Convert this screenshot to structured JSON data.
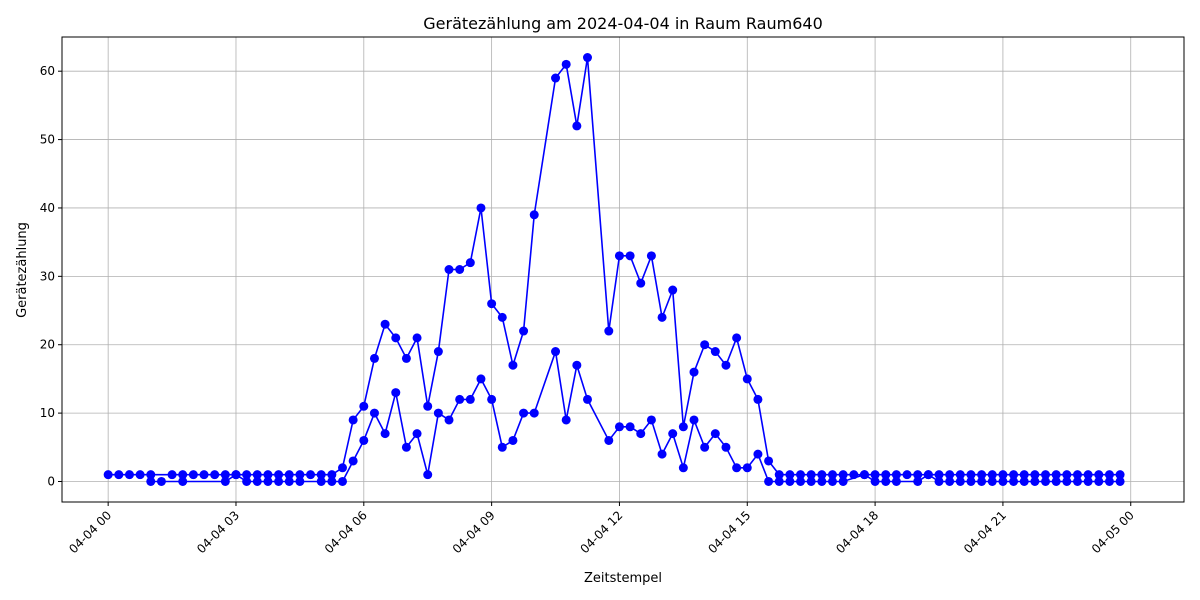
{
  "chart_data": {
    "type": "line",
    "title": "Gerätezählung am 2024-04-04 in Raum Raum640",
    "xlabel": "Zeitstempel",
    "ylabel": "Gerätezählung",
    "x_axis_type": "datetime",
    "xlim": [
      "2024-04-03 22:55",
      "2024-04-05 01:15"
    ],
    "ylim": [
      -3,
      65
    ],
    "x_ticks": [
      "2024-04-04 00:00",
      "2024-04-04 03:00",
      "2024-04-04 06:00",
      "2024-04-04 09:00",
      "2024-04-04 12:00",
      "2024-04-04 15:00",
      "2024-04-04 18:00",
      "2024-04-04 21:00",
      "2024-04-05 00:00"
    ],
    "x_tick_labels": [
      "04-04 00",
      "04-04 03",
      "04-04 06",
      "04-04 09",
      "04-04 12",
      "04-04 15",
      "04-04 18",
      "04-04 21",
      "04-05 00"
    ],
    "y_ticks": [
      0,
      10,
      20,
      30,
      40,
      50,
      60
    ],
    "y_tick_labels": [
      "0",
      "10",
      "20",
      "30",
      "40",
      "50",
      "60"
    ],
    "grid": true,
    "legend": "none",
    "color": "#0000ff",
    "marker": "circle",
    "series": [
      {
        "x": [
          "2024-04-04 00:00",
          "2024-04-04 00:15",
          "2024-04-04 00:30",
          "2024-04-04 00:45",
          "2024-04-04 01:00",
          "2024-04-04 01:30",
          "2024-04-04 01:45",
          "2024-04-04 02:00",
          "2024-04-04 02:15",
          "2024-04-04 02:30",
          "2024-04-04 02:45",
          "2024-04-04 03:00",
          "2024-04-04 03:15",
          "2024-04-04 03:30",
          "2024-04-04 03:45",
          "2024-04-04 04:00",
          "2024-04-04 04:15",
          "2024-04-04 04:30",
          "2024-04-04 04:45",
          "2024-04-04 05:00",
          "2024-04-04 05:15",
          "2024-04-04 05:30",
          "2024-04-04 05:45",
          "2024-04-04 06:00",
          "2024-04-04 06:15",
          "2024-04-04 06:30",
          "2024-04-04 06:45",
          "2024-04-04 07:00",
          "2024-04-04 07:15",
          "2024-04-04 07:30",
          "2024-04-04 07:45",
          "2024-04-04 08:00",
          "2024-04-04 08:15",
          "2024-04-04 08:30",
          "2024-04-04 08:45",
          "2024-04-04 09:00",
          "2024-04-04 09:15",
          "2024-04-04 09:30",
          "2024-04-04 09:45",
          "2024-04-04 10:00",
          "2024-04-04 10:30",
          "2024-04-04 10:45",
          "2024-04-04 11:00",
          "2024-04-04 11:15",
          "2024-04-04 11:45",
          "2024-04-04 12:00",
          "2024-04-04 12:15",
          "2024-04-04 12:30",
          "2024-04-04 12:45",
          "2024-04-04 13:00",
          "2024-04-04 13:15",
          "2024-04-04 13:30",
          "2024-04-04 13:45",
          "2024-04-04 14:00",
          "2024-04-04 14:15",
          "2024-04-04 14:30",
          "2024-04-04 14:45",
          "2024-04-04 15:00",
          "2024-04-04 15:15",
          "2024-04-04 15:30",
          "2024-04-04 15:45",
          "2024-04-04 16:00",
          "2024-04-04 16:15",
          "2024-04-04 16:30",
          "2024-04-04 16:45",
          "2024-04-04 17:00",
          "2024-04-04 17:15",
          "2024-04-04 17:30",
          "2024-04-04 17:45",
          "2024-04-04 18:00",
          "2024-04-04 18:15",
          "2024-04-04 18:30",
          "2024-04-04 18:45",
          "2024-04-04 19:00",
          "2024-04-04 19:15",
          "2024-04-04 19:30",
          "2024-04-04 19:45",
          "2024-04-04 20:00",
          "2024-04-04 20:15",
          "2024-04-04 20:30",
          "2024-04-04 20:45",
          "2024-04-04 21:00",
          "2024-04-04 21:15",
          "2024-04-04 21:30",
          "2024-04-04 21:45",
          "2024-04-04 22:00",
          "2024-04-04 22:15",
          "2024-04-04 22:30",
          "2024-04-04 22:45",
          "2024-04-04 23:00",
          "2024-04-04 23:15",
          "2024-04-04 23:30",
          "2024-04-04 23:45"
        ],
        "y": [
          1,
          1,
          1,
          1,
          1,
          1,
          1,
          1,
          1,
          1,
          1,
          1,
          1,
          1,
          1,
          1,
          1,
          1,
          1,
          1,
          1,
          2,
          9,
          11,
          18,
          23,
          21,
          18,
          21,
          11,
          19,
          31,
          31,
          32,
          40,
          26,
          24,
          17,
          22,
          39,
          59,
          61,
          52,
          62,
          22,
          33,
          33,
          29,
          33,
          24,
          28,
          8,
          16,
          20,
          19,
          17,
          21,
          15,
          12,
          3,
          1,
          1,
          1,
          1,
          1,
          1,
          1,
          1,
          1,
          1,
          1,
          1,
          1,
          1,
          1,
          1,
          1,
          1,
          1,
          1,
          1,
          1,
          1,
          1,
          1,
          1,
          1,
          1,
          1,
          1,
          1,
          1,
          1
        ]
      },
      {
        "x": [
          "2024-04-04 01:00",
          "2024-04-04 01:15",
          "2024-04-04 01:45",
          "2024-04-04 02:45",
          "2024-04-04 03:00",
          "2024-04-04 03:15",
          "2024-04-04 03:30",
          "2024-04-04 03:45",
          "2024-04-04 04:00",
          "2024-04-04 04:15",
          "2024-04-04 04:30",
          "2024-04-04 05:00",
          "2024-04-04 05:15",
          "2024-04-04 05:30",
          "2024-04-04 05:45",
          "2024-04-04 06:00",
          "2024-04-04 06:15",
          "2024-04-04 06:30",
          "2024-04-04 06:45",
          "2024-04-04 07:00",
          "2024-04-04 07:15",
          "2024-04-04 07:30",
          "2024-04-04 07:45",
          "2024-04-04 08:00",
          "2024-04-04 08:15",
          "2024-04-04 08:30",
          "2024-04-04 08:45",
          "2024-04-04 09:00",
          "2024-04-04 09:15",
          "2024-04-04 09:30",
          "2024-04-04 09:45",
          "2024-04-04 10:00",
          "2024-04-04 10:30",
          "2024-04-04 10:45",
          "2024-04-04 11:00",
          "2024-04-04 11:15",
          "2024-04-04 11:45",
          "2024-04-04 12:00",
          "2024-04-04 12:15",
          "2024-04-04 12:30",
          "2024-04-04 12:45",
          "2024-04-04 13:00",
          "2024-04-04 13:15",
          "2024-04-04 13:30",
          "2024-04-04 13:45",
          "2024-04-04 14:00",
          "2024-04-04 14:15",
          "2024-04-04 14:30",
          "2024-04-04 14:45",
          "2024-04-04 15:00",
          "2024-04-04 15:15",
          "2024-04-04 15:30",
          "2024-04-04 15:45",
          "2024-04-04 16:00",
          "2024-04-04 16:15",
          "2024-04-04 16:30",
          "2024-04-04 16:45",
          "2024-04-04 17:00",
          "2024-04-04 17:15",
          "2024-04-04 17:45",
          "2024-04-04 18:00",
          "2024-04-04 18:15",
          "2024-04-04 18:30",
          "2024-04-04 19:00",
          "2024-04-04 19:15",
          "2024-04-04 19:30",
          "2024-04-04 19:45",
          "2024-04-04 20:00",
          "2024-04-04 20:15",
          "2024-04-04 20:30",
          "2024-04-04 20:45",
          "2024-04-04 21:00",
          "2024-04-04 21:15",
          "2024-04-04 21:30",
          "2024-04-04 21:45",
          "2024-04-04 22:00",
          "2024-04-04 22:15",
          "2024-04-04 22:30",
          "2024-04-04 22:45",
          "2024-04-04 23:00",
          "2024-04-04 23:15",
          "2024-04-04 23:30",
          "2024-04-04 23:45"
        ],
        "y": [
          0,
          0,
          0,
          0,
          1,
          0,
          0,
          0,
          0,
          0,
          0,
          0,
          0,
          0,
          3,
          6,
          10,
          7,
          13,
          5,
          7,
          1,
          10,
          9,
          12,
          12,
          15,
          12,
          5,
          6,
          10,
          10,
          19,
          9,
          17,
          12,
          6,
          8,
          8,
          7,
          9,
          4,
          7,
          2,
          9,
          5,
          7,
          5,
          2,
          2,
          4,
          0,
          0,
          0,
          0,
          0,
          0,
          0,
          0,
          1,
          0,
          0,
          0,
          0,
          1,
          0,
          0,
          0,
          0,
          0,
          0,
          0,
          0,
          0,
          0,
          0,
          0,
          0,
          0,
          0,
          0,
          0,
          0
        ]
      }
    ]
  }
}
